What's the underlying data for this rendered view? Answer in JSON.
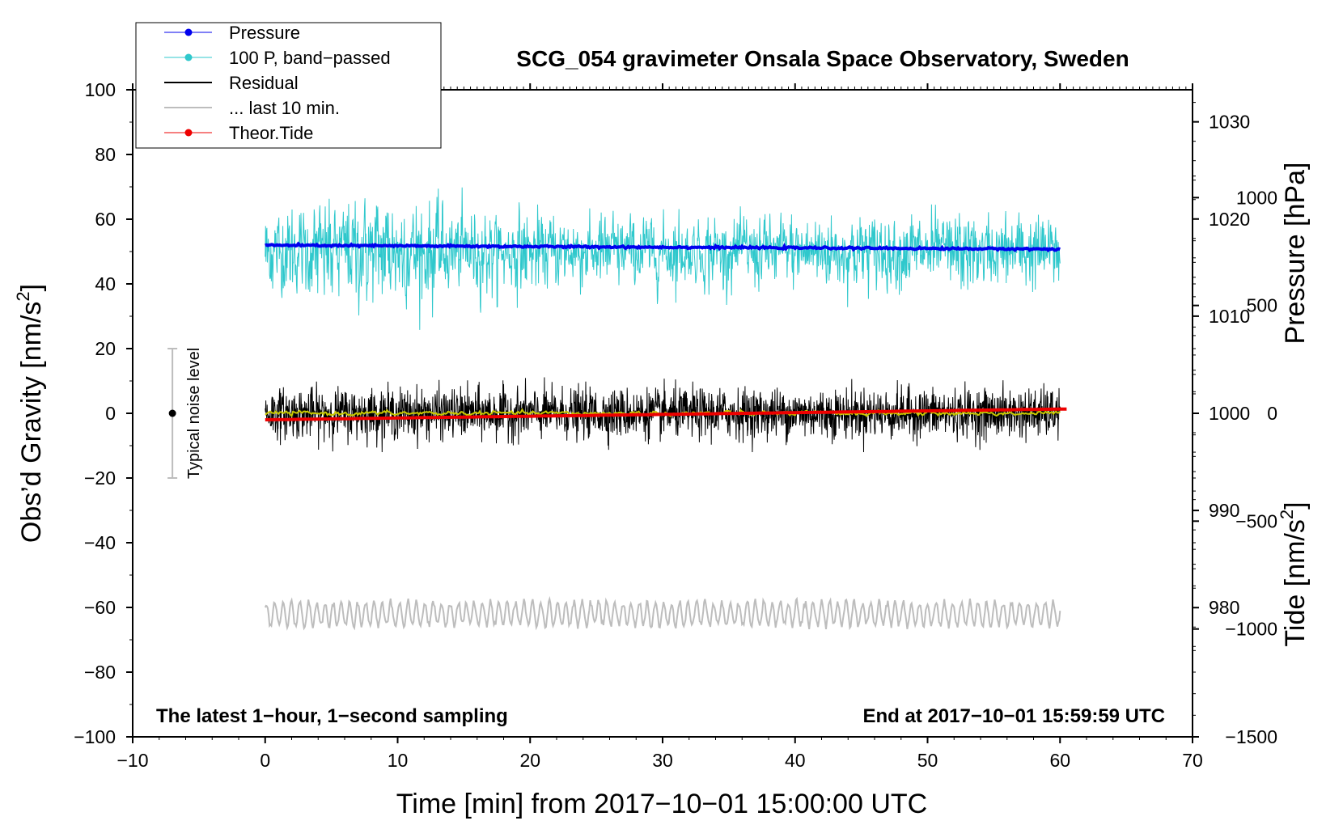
{
  "chart_data": {
    "type": "line",
    "title": "SCG_054 gravimeter Onsala Space Observatory, Sweden",
    "xlabel": "Time [min] from 2017−10−01 15:00:00 UTC",
    "ylabel_main": "Obs’d Gravity [nm/s",
    "ylabel_main_sup": "2",
    "ylabel_main_end": "]",
    "ylabel_pressure": "Pressure [hPa]",
    "ylabel_tide": "Tide [nm/s",
    "ylabel_tide_sup": "2",
    "ylabel_tide_end": "]",
    "xlim": [
      -10,
      70
    ],
    "ylim": [
      -100,
      100
    ],
    "pressure_range": [
      966.7,
      1033.3
    ],
    "tide_range": [
      -1500,
      1500
    ],
    "x_ticks": [
      {
        "v": -10,
        "label": "−10"
      },
      {
        "v": 0,
        "label": "0"
      },
      {
        "v": 10,
        "label": "10"
      },
      {
        "v": 20,
        "label": "20"
      },
      {
        "v": 30,
        "label": "30"
      },
      {
        "v": 40,
        "label": "40"
      },
      {
        "v": 50,
        "label": "50"
      },
      {
        "v": 60,
        "label": "60"
      },
      {
        "v": 70,
        "label": "70"
      }
    ],
    "y_ticks": [
      {
        "v": 100,
        "label": "100"
      },
      {
        "v": 80,
        "label": "80"
      },
      {
        "v": 60,
        "label": "60"
      },
      {
        "v": 40,
        "label": "40"
      },
      {
        "v": 20,
        "label": "20"
      },
      {
        "v": 0,
        "label": "0"
      },
      {
        "v": -20,
        "label": "−20"
      },
      {
        "v": -40,
        "label": "−40"
      },
      {
        "v": -60,
        "label": "−60"
      },
      {
        "v": -80,
        "label": "−80"
      },
      {
        "v": -100,
        "label": "−100"
      }
    ],
    "pressure_ticks": [
      {
        "v": 1030,
        "label": "1030"
      },
      {
        "v": 1020,
        "label": "1020"
      },
      {
        "v": 1010,
        "label": "1010"
      },
      {
        "v": 1000,
        "label": "1000"
      },
      {
        "v": 990,
        "label": "990"
      },
      {
        "v": 980,
        "label": "980"
      }
    ],
    "tide_ticks": [
      {
        "v": 1000,
        "label": "1000"
      },
      {
        "v": 500,
        "label": "500"
      },
      {
        "v": 0,
        "label": "0"
      },
      {
        "v": -500,
        "label": "−500"
      },
      {
        "v": -1000,
        "label": "−1000"
      },
      {
        "v": -1500,
        "label": "−1500"
      }
    ],
    "legend": [
      {
        "name": "Pressure",
        "color": "#0000ee",
        "marker": true
      },
      {
        "name": "100 P, band−passed",
        "color": "#2fc8cc",
        "marker": true
      },
      {
        "name": "Residual",
        "color": "#000000",
        "marker": false
      },
      {
        "name": "... last 10 min.",
        "color": "#bdbdbd",
        "marker": false
      },
      {
        "name": "Theor.Tide",
        "color": "#ee0000",
        "marker": true
      }
    ],
    "series": [
      {
        "name": "Pressure",
        "color": "#0000ee",
        "x_range": [
          0,
          60
        ],
        "level_hpa": 1017.3,
        "level_end_hpa": 1016.9
      },
      {
        "name": "100 P, band−passed",
        "color": "#2fc8cc",
        "x_range": [
          0,
          60
        ],
        "center": 50,
        "amplitude": 8,
        "peak_max": 75,
        "peak_min": 23
      },
      {
        "name": "Residual",
        "color": "#000000",
        "x_range": [
          0,
          60
        ],
        "center": 0,
        "amplitude": 5,
        "peak_max": 13,
        "peak_min": -12
      },
      {
        "name": "Residual smoothed",
        "color": "#c8c800",
        "x_range": [
          0,
          60
        ],
        "center": 0,
        "amplitude": 0.7
      },
      {
        "name": "... last 10 min.",
        "color": "#bdbdbd",
        "x_range": [
          0,
          60
        ],
        "center": -62,
        "amplitude": 4
      },
      {
        "name": "Theor.Tide",
        "color": "#ee0000",
        "x_range": [
          0,
          60.5
        ],
        "start_nms2": -30,
        "end_nms2": 20
      }
    ],
    "noise_bar": {
      "x": -7,
      "center": 0,
      "low": -20,
      "high": 20,
      "label": "Typical noise level"
    },
    "annotations": {
      "left": "The latest 1−hour, 1−second sampling",
      "right": "End at 2017−10−01 15:59:59 UTC"
    }
  }
}
